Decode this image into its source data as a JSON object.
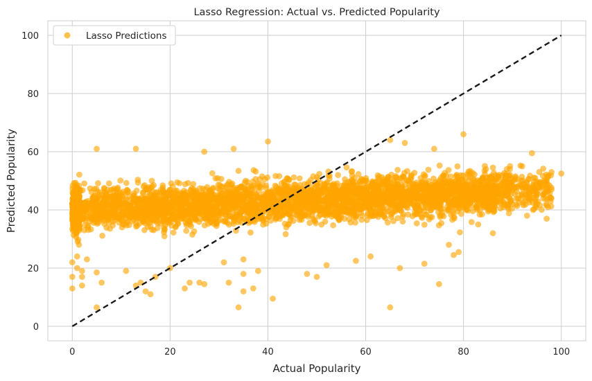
{
  "chart_data": {
    "type": "scatter",
    "title": "Lasso Regression: Actual vs. Predicted Popularity",
    "xlabel": "Actual Popularity",
    "ylabel": "Predicted Popularity",
    "xlim": [
      -5,
      105
    ],
    "ylim": [
      -5,
      105
    ],
    "xticks": [
      0,
      20,
      40,
      60,
      80,
      100
    ],
    "yticks": [
      0,
      20,
      40,
      60,
      80,
      100
    ],
    "grid": true,
    "legend": {
      "position": "top-left",
      "entries": [
        "Lasso Predictions"
      ]
    },
    "series": [
      {
        "name": "Lasso Predictions",
        "color": "#FFA500",
        "points": [
          [
            0,
            13
          ],
          [
            0,
            17
          ],
          [
            0,
            22
          ],
          [
            1,
            20
          ],
          [
            1,
            24
          ],
          [
            2,
            14
          ],
          [
            2,
            17
          ],
          [
            2,
            19
          ],
          [
            3,
            23
          ],
          [
            5,
            6.5
          ],
          [
            6,
            15
          ],
          [
            5,
            18.5
          ],
          [
            5,
            61
          ],
          [
            11,
            19
          ],
          [
            13,
            61
          ],
          [
            13,
            14
          ],
          [
            14,
            15
          ],
          [
            15,
            12
          ],
          [
            16,
            11
          ],
          [
            17,
            17
          ],
          [
            20,
            20
          ],
          [
            23,
            13
          ],
          [
            24,
            15
          ],
          [
            26,
            15
          ],
          [
            27,
            14.5
          ],
          [
            27,
            60
          ],
          [
            31,
            22
          ],
          [
            32,
            15
          ],
          [
            33,
            61
          ],
          [
            34,
            6.5
          ],
          [
            35,
            12
          ],
          [
            35,
            18
          ],
          [
            35,
            23
          ],
          [
            37,
            13
          ],
          [
            38,
            19
          ],
          [
            40,
            63.5
          ],
          [
            41,
            9.5
          ],
          [
            48,
            18
          ],
          [
            50,
            17
          ],
          [
            52,
            21
          ],
          [
            58,
            22.5
          ],
          [
            61,
            24
          ],
          [
            65,
            6.5
          ],
          [
            65,
            64
          ],
          [
            67,
            20
          ],
          [
            68,
            63
          ],
          [
            72,
            21.5
          ],
          [
            74,
            61
          ],
          [
            75,
            14.5
          ],
          [
            77,
            28
          ],
          [
            78,
            24.5
          ],
          [
            79,
            25.5
          ],
          [
            80,
            66
          ],
          [
            83,
            35
          ],
          [
            85,
            50
          ],
          [
            86,
            32
          ],
          [
            88,
            48
          ],
          [
            90,
            42
          ],
          [
            92,
            55
          ],
          [
            93,
            38
          ],
          [
            94,
            59.5
          ],
          [
            95,
            42
          ],
          [
            97,
            37
          ],
          [
            97,
            50
          ],
          [
            98,
            53
          ],
          [
            98,
            47
          ],
          [
            100,
            52.5
          ]
        ],
        "cloud": {
          "x_range": [
            0,
            98
          ],
          "y_center_at_x0": 40,
          "y_center_at_x100": 47,
          "y_spread": 8,
          "y_band": [
            25,
            57
          ]
        }
      }
    ],
    "reference_line": {
      "from": [
        0,
        0
      ],
      "to": [
        100,
        100
      ],
      "style": "dashed",
      "color": "#1a1a1a"
    }
  }
}
